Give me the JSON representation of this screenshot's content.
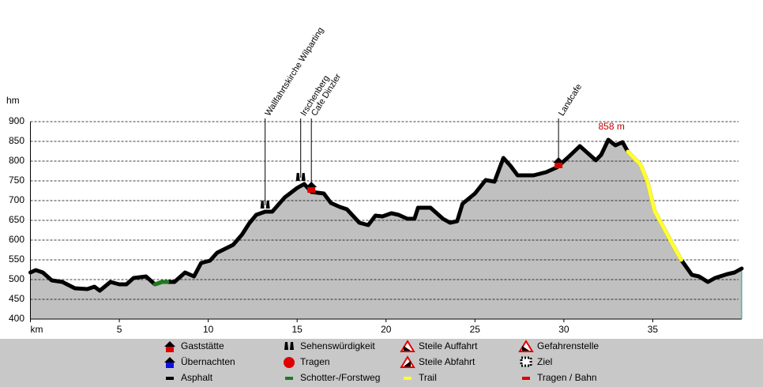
{
  "chart_data": {
    "type": "line",
    "ylabel": "hm",
    "xlim": [
      0,
      40
    ],
    "ylim": [
      400,
      900
    ],
    "xticks": [
      {
        "value": 0,
        "label": "km"
      },
      5,
      10,
      15,
      20,
      25,
      30,
      35
    ],
    "yticks": [
      400,
      450,
      500,
      550,
      600,
      650,
      700,
      750,
      800,
      850,
      900
    ],
    "grid": true,
    "fill": "#c0c0c0",
    "series": [
      {
        "color": "#000000",
        "x": [
          0,
          0.3,
          0.7,
          1.2,
          1.8,
          2.5,
          3.2,
          3.6,
          3.9,
          4.5,
          5.0,
          5.4,
          5.8,
          6.5,
          7.0,
          7.4,
          8.1,
          8.7,
          9.2,
          9.6,
          10.1,
          10.5,
          11.4,
          11.9,
          12.3,
          12.7,
          13.2,
          13.6,
          14.3,
          15.0,
          15.4,
          15.8,
          16.5,
          16.9,
          17.4,
          17.8,
          18.5,
          19.0,
          19.4,
          19.8,
          20.3,
          20.7,
          21.2,
          21.6,
          21.8,
          22.5,
          23.2,
          23.6,
          24.0,
          24.3,
          25.0,
          25.6,
          26.1,
          26.6,
          27.0,
          27.4,
          28.3,
          29.0,
          29.6,
          30.2,
          30.9,
          31.8,
          32.1,
          32.5,
          32.9,
          33.3,
          33.6,
          34.3,
          34.7,
          35.1,
          35.7,
          36.1,
          36.6,
          37.2,
          37.6,
          38.1,
          38.5,
          39.2,
          39.6,
          40.0
        ],
        "values": [
          518,
          524,
          518,
          498,
          494,
          478,
          476,
          482,
          472,
          494,
          488,
          488,
          504,
          508,
          488,
          494,
          494,
          518,
          508,
          542,
          548,
          568,
          588,
          614,
          642,
          664,
          672,
          672,
          708,
          732,
          742,
          722,
          718,
          694,
          684,
          678,
          644,
          638,
          662,
          660,
          668,
          664,
          654,
          654,
          682,
          682,
          654,
          644,
          648,
          692,
          718,
          752,
          748,
          808,
          788,
          764,
          764,
          772,
          784,
          808,
          838,
          802,
          816,
          854,
          840,
          848,
          824,
          792,
          748,
          674,
          624,
          590,
          550,
          512,
          508,
          494,
          504,
          514,
          518,
          528
        ]
      },
      {
        "color": "#1e7a1e",
        "x": [
          7.0,
          7.4,
          7.7
        ],
        "values": [
          488,
          494,
          494
        ]
      },
      {
        "color": "#ffff33",
        "x": [
          33.6,
          34.3,
          34.7,
          35.1,
          35.7,
          36.1,
          36.6
        ],
        "values": [
          824,
          792,
          748,
          674,
          624,
          590,
          550
        ]
      }
    ],
    "annotations": [
      {
        "label": "Wallfahrtskirche Wilparting",
        "x": 13.2,
        "y": 672
      },
      {
        "label": "Irschenberg",
        "x": 15.2,
        "y": 742
      },
      {
        "label": "Cafe Dinzler",
        "x": 15.8,
        "y": 722
      },
      {
        "label": "Landcafe",
        "x": 29.7,
        "y": 784
      }
    ],
    "max_label": {
      "label": "858 m",
      "x": 32.5,
      "y": 858
    },
    "legend": [
      "Gaststätte",
      "Sehenswürdigkeit",
      "Steile Auffahrt",
      "Gefahrenstelle",
      "Übernachten",
      "Tragen",
      "Steile Abfahrt",
      "Ziel",
      "Asphalt",
      "Schotter-/Forstweg",
      "Trail",
      "Tragen / Bahn"
    ]
  }
}
